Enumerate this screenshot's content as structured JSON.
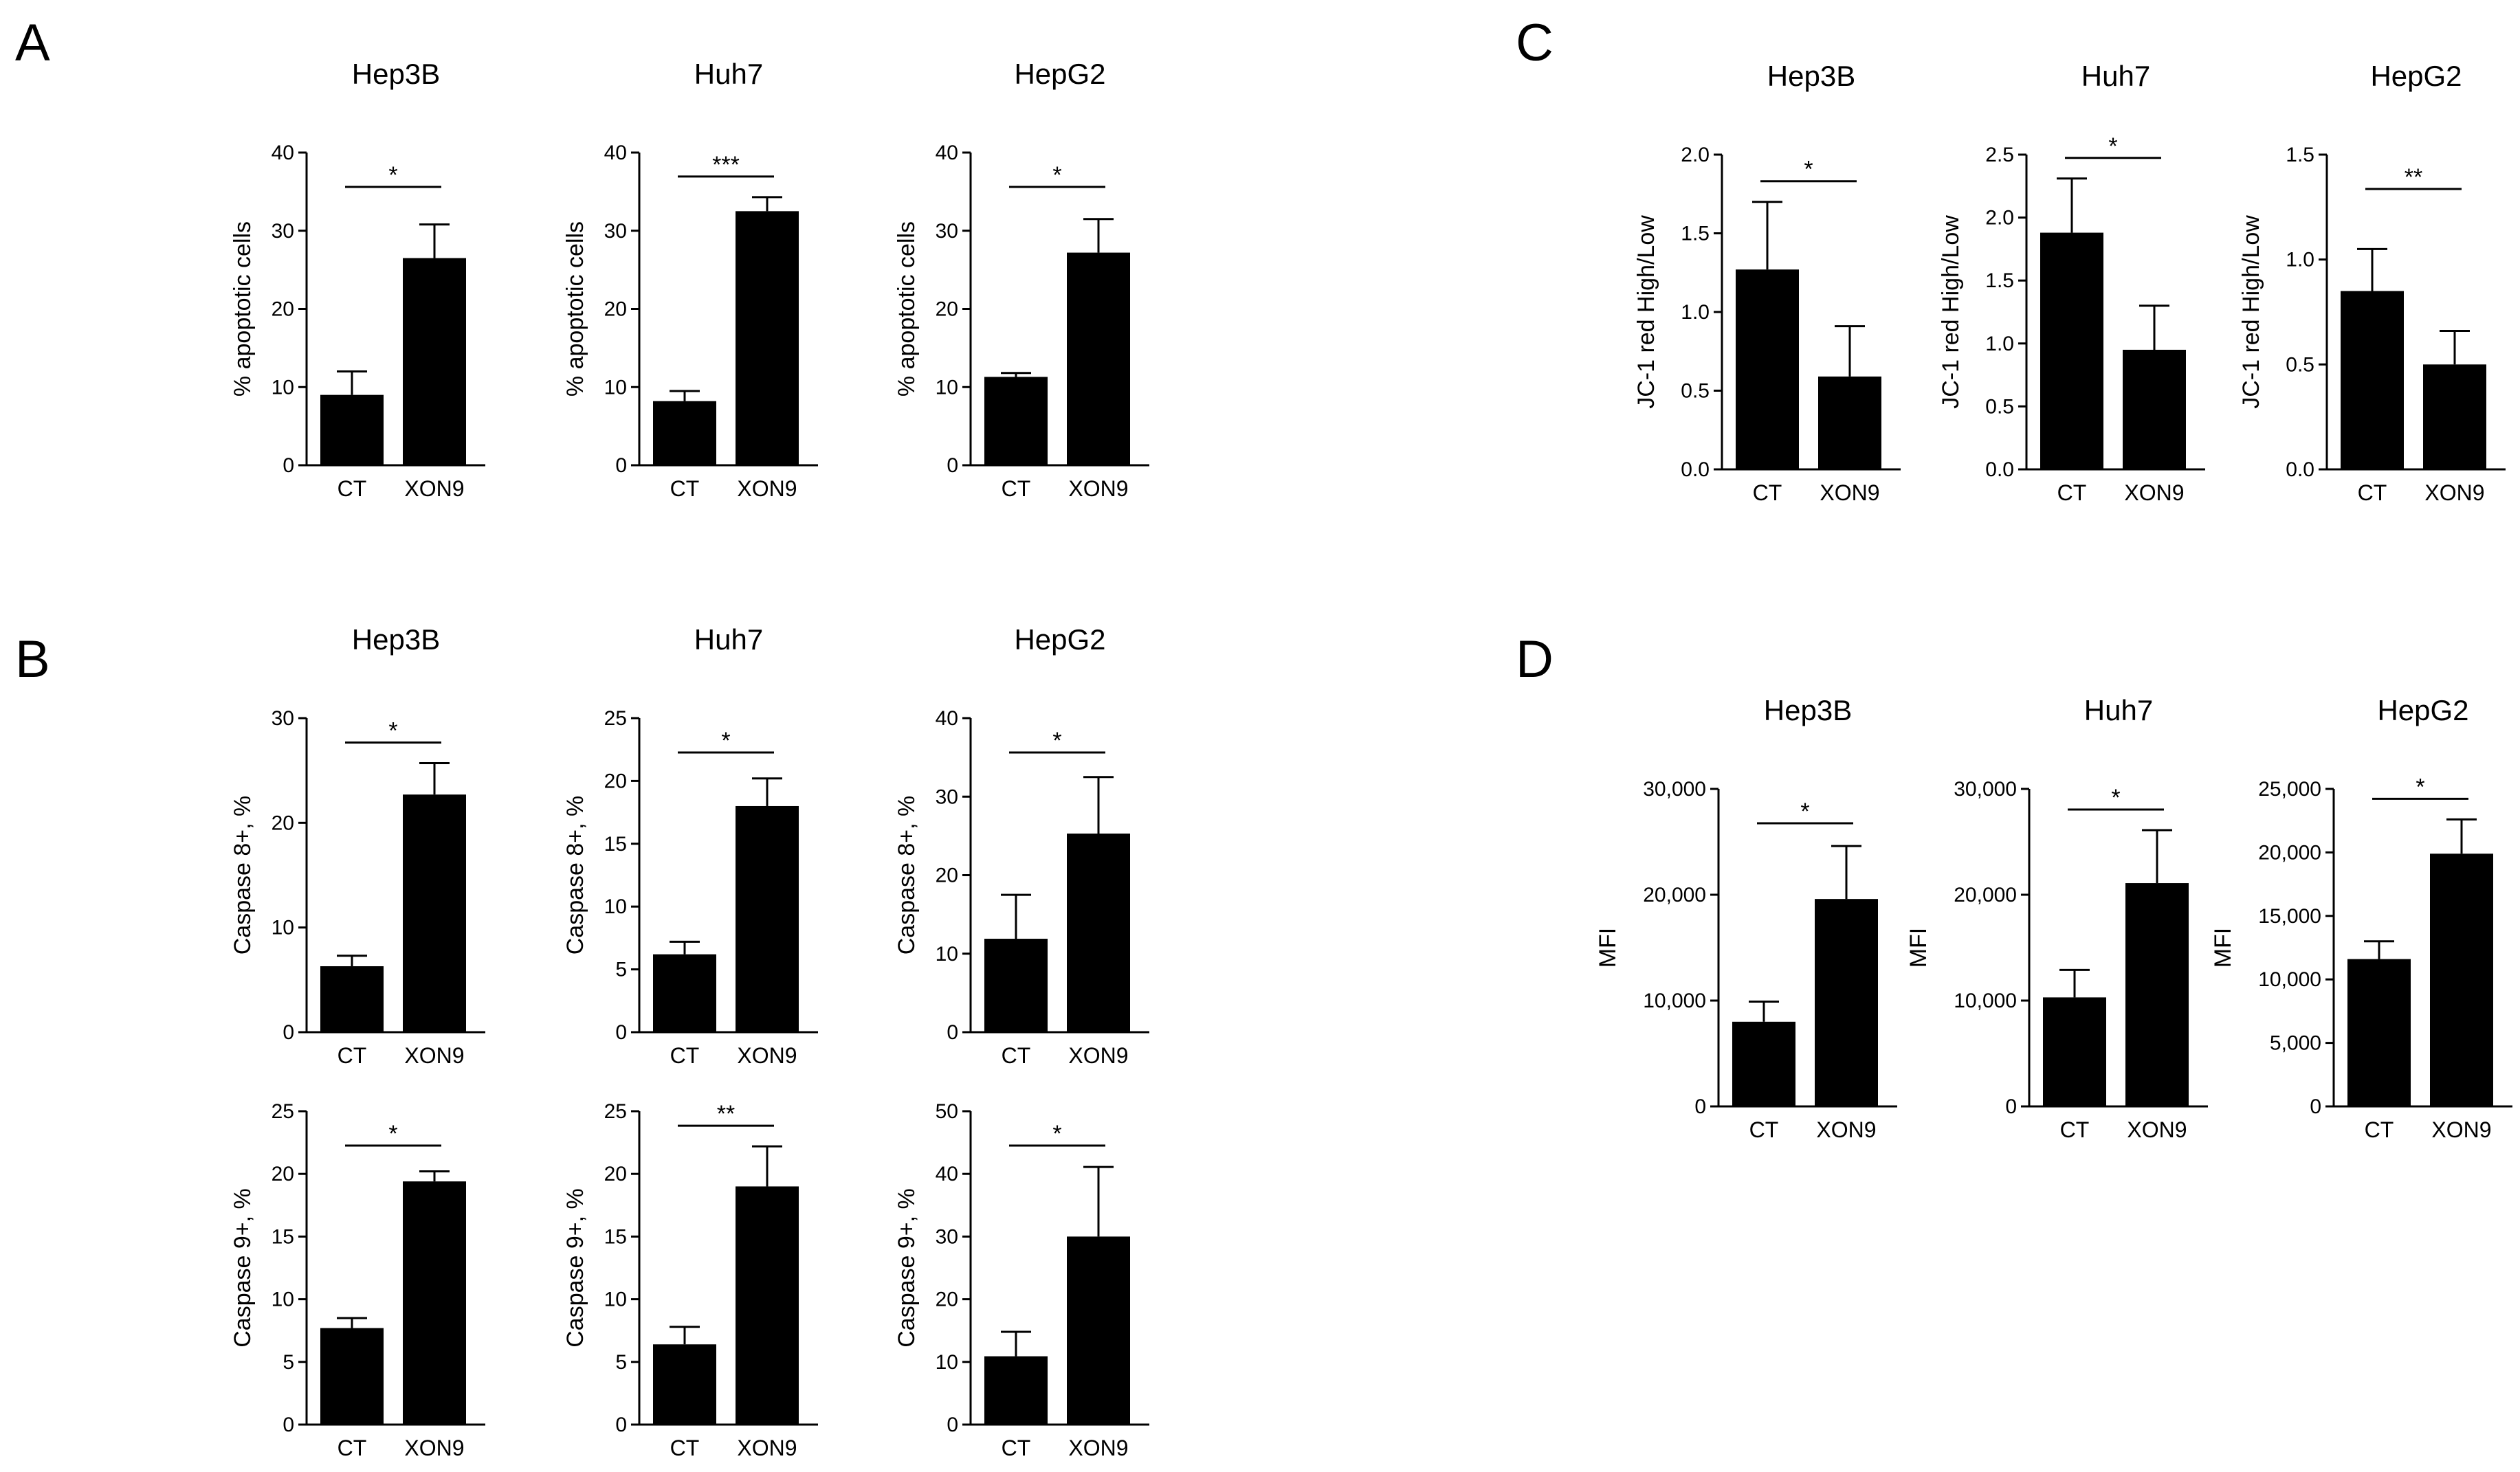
{
  "panels": [
    {
      "id": "A",
      "label": "A"
    },
    {
      "id": "B",
      "label": "B"
    },
    {
      "id": "C",
      "label": "C"
    },
    {
      "id": "D",
      "label": "D"
    }
  ],
  "chart_data": [
    {
      "id": "A-hep3b",
      "panel": "A",
      "type": "bar",
      "title": "Hep3B",
      "ylabel": "% apoptotic cells",
      "categories": [
        "CT",
        "XON9"
      ],
      "values": [
        9,
        26.5
      ],
      "errors": [
        3,
        4.3
      ],
      "ylim": [
        0,
        40
      ],
      "yticks": [
        0,
        10,
        20,
        30,
        40
      ],
      "ytick_labels": [
        "0",
        "10",
        "20",
        "30",
        "40"
      ],
      "significance": "*"
    },
    {
      "id": "A-huh7",
      "panel": "A",
      "type": "bar",
      "title": "Huh7",
      "ylabel": "% apoptotic cells",
      "categories": [
        "CT",
        "XON9"
      ],
      "values": [
        8.2,
        32.5
      ],
      "errors": [
        1.3,
        1.8
      ],
      "ylim": [
        0,
        40
      ],
      "yticks": [
        0,
        10,
        20,
        30,
        40
      ],
      "ytick_labels": [
        "0",
        "10",
        "20",
        "30",
        "40"
      ],
      "significance": "***"
    },
    {
      "id": "A-hepg2",
      "panel": "A",
      "type": "bar",
      "title": "HepG2",
      "ylabel": "% apoptotic cells",
      "categories": [
        "CT",
        "XON9"
      ],
      "values": [
        11.3,
        27.2
      ],
      "errors": [
        0.5,
        4.3
      ],
      "ylim": [
        0,
        40
      ],
      "yticks": [
        0,
        10,
        20,
        30,
        40
      ],
      "ytick_labels": [
        "0",
        "10",
        "20",
        "30",
        "40"
      ],
      "significance": "*"
    },
    {
      "id": "B-hep3b-c8",
      "panel": "B",
      "type": "bar",
      "title": "Hep3B",
      "ylabel": "Caspase 8+, %",
      "categories": [
        "CT",
        "XON9"
      ],
      "values": [
        6.3,
        22.7
      ],
      "errors": [
        1,
        3
      ],
      "ylim": [
        0,
        30
      ],
      "yticks": [
        0,
        10,
        20,
        30
      ],
      "ytick_labels": [
        "0",
        "10",
        "20",
        "30"
      ],
      "significance": "*"
    },
    {
      "id": "B-huh7-c8",
      "panel": "B",
      "type": "bar",
      "title": "Huh7",
      "ylabel": "Caspase 8+, %",
      "categories": [
        "CT",
        "XON9"
      ],
      "values": [
        6.2,
        18
      ],
      "errors": [
        1,
        2.2
      ],
      "ylim": [
        0,
        25
      ],
      "yticks": [
        0,
        5,
        10,
        15,
        20,
        25
      ],
      "ytick_labels": [
        "0",
        "5",
        "10",
        "15",
        "20",
        "25"
      ],
      "significance": "*"
    },
    {
      "id": "B-hepg2-c8",
      "panel": "B",
      "type": "bar",
      "title": "HepG2",
      "ylabel": "Caspase 8+, %",
      "categories": [
        "CT",
        "XON9"
      ],
      "values": [
        11.9,
        25.3
      ],
      "errors": [
        5.6,
        7.2
      ],
      "ylim": [
        0,
        40
      ],
      "yticks": [
        0,
        10,
        20,
        30,
        40
      ],
      "ytick_labels": [
        "0",
        "10",
        "20",
        "30",
        "40"
      ],
      "significance": "*"
    },
    {
      "id": "B-hep3b-c9",
      "panel": "B",
      "type": "bar",
      "title": "",
      "ylabel": "Caspase 9+, %",
      "categories": [
        "CT",
        "XON9"
      ],
      "values": [
        7.7,
        19.4
      ],
      "errors": [
        0.8,
        0.8
      ],
      "ylim": [
        0,
        25
      ],
      "yticks": [
        0,
        5,
        10,
        15,
        20,
        25
      ],
      "ytick_labels": [
        "0",
        "5",
        "10",
        "15",
        "20",
        "25"
      ],
      "significance": "*"
    },
    {
      "id": "B-huh7-c9",
      "panel": "B",
      "type": "bar",
      "title": "",
      "ylabel": "Caspase 9+, %",
      "categories": [
        "CT",
        "XON9"
      ],
      "values": [
        6.4,
        19
      ],
      "errors": [
        1.4,
        3.2
      ],
      "ylim": [
        0,
        25
      ],
      "yticks": [
        0,
        5,
        10,
        15,
        20,
        25
      ],
      "ytick_labels": [
        "0",
        "5",
        "10",
        "15",
        "20",
        "25"
      ],
      "significance": "**"
    },
    {
      "id": "B-hepg2-c9",
      "panel": "B",
      "type": "bar",
      "title": "",
      "ylabel": "Caspase 9+, %",
      "categories": [
        "CT",
        "XON9"
      ],
      "values": [
        10.9,
        30
      ],
      "errors": [
        3.9,
        11.1
      ],
      "ylim": [
        0,
        50
      ],
      "yticks": [
        0,
        10,
        20,
        30,
        40,
        50
      ],
      "ytick_labels": [
        "0",
        "10",
        "20",
        "30",
        "40",
        "50"
      ],
      "significance": "*"
    },
    {
      "id": "C-hep3b",
      "panel": "C",
      "type": "bar",
      "title": "Hep3B",
      "ylabel": "JC-1 red High/Low",
      "categories": [
        "CT",
        "XON9"
      ],
      "values": [
        1.27,
        0.59
      ],
      "errors": [
        0.43,
        0.32
      ],
      "ylim": [
        0,
        2.0
      ],
      "yticks": [
        0,
        0.5,
        1.0,
        1.5,
        2.0
      ],
      "ytick_labels": [
        "0.0",
        "0.5",
        "1.0",
        "1.5",
        "2.0"
      ],
      "significance": "*"
    },
    {
      "id": "C-huh7",
      "panel": "C",
      "type": "bar",
      "title": "Huh7",
      "ylabel": "JC-1 red High/Low",
      "categories": [
        "CT",
        "XON9"
      ],
      "values": [
        1.88,
        0.95
      ],
      "errors": [
        0.43,
        0.35
      ],
      "ylim": [
        0,
        2.5
      ],
      "yticks": [
        0,
        0.5,
        1.0,
        1.5,
        2.0,
        2.5
      ],
      "ytick_labels": [
        "0.0",
        "0.5",
        "1.0",
        "1.5",
        "2.0",
        "2.5"
      ],
      "significance": "*"
    },
    {
      "id": "C-hepg2",
      "panel": "C",
      "type": "bar",
      "title": "HepG2",
      "ylabel": "JC-1 red High/Low",
      "categories": [
        "CT",
        "XON9"
      ],
      "values": [
        0.85,
        0.5
      ],
      "errors": [
        0.2,
        0.16
      ],
      "ylim": [
        0,
        1.5
      ],
      "yticks": [
        0,
        0.5,
        1.0,
        1.5
      ],
      "ytick_labels": [
        "0.0",
        "0.5",
        "1.0",
        "1.5"
      ],
      "significance": "**"
    },
    {
      "id": "D-hep3b",
      "panel": "D",
      "type": "bar",
      "title": "Hep3B",
      "ylabel": "MFI",
      "categories": [
        "CT",
        "XON9"
      ],
      "values": [
        8000,
        19600
      ],
      "errors": [
        1900,
        5000
      ],
      "ylim": [
        0,
        30000
      ],
      "yticks": [
        0,
        10000,
        20000,
        30000
      ],
      "ytick_labels": [
        "0",
        "10,000",
        "20,000",
        "30,000"
      ],
      "significance": "*"
    },
    {
      "id": "D-huh7",
      "panel": "D",
      "type": "bar",
      "title": "Huh7",
      "ylabel": "MFI",
      "categories": [
        "CT",
        "XON9"
      ],
      "values": [
        10300,
        21100
      ],
      "errors": [
        2600,
        5000
      ],
      "ylim": [
        0,
        30000
      ],
      "yticks": [
        0,
        10000,
        20000,
        30000
      ],
      "ytick_labels": [
        "0",
        "10,000",
        "20,000",
        "30,000"
      ],
      "significance": "*"
    },
    {
      "id": "D-hepg2",
      "panel": "D",
      "type": "bar",
      "title": "HepG2",
      "ylabel": "MFI",
      "categories": [
        "CT",
        "XON9"
      ],
      "values": [
        11600,
        19900
      ],
      "errors": [
        1400,
        2700
      ],
      "ylim": [
        0,
        25000
      ],
      "yticks": [
        0,
        5000,
        10000,
        15000,
        20000,
        25000
      ],
      "ytick_labels": [
        "0",
        "5,000",
        "10,000",
        "15,000",
        "20,000",
        "25,000"
      ],
      "significance": "*"
    }
  ]
}
